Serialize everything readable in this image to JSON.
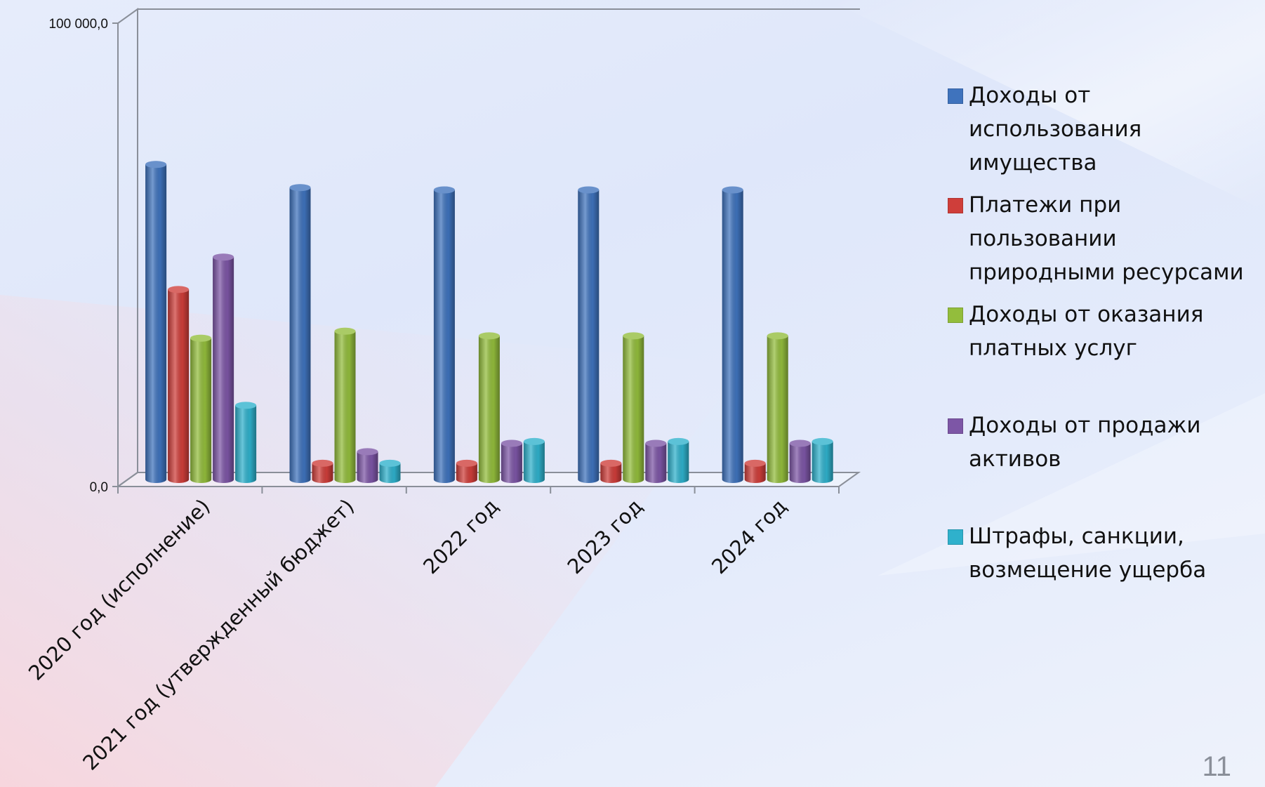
{
  "slide": {
    "page_number": "11"
  },
  "chart_data": {
    "type": "bar",
    "ylim": [
      0,
      100000
    ],
    "y_tick_labels": [
      "0,0",
      "100 000,0"
    ],
    "categories": [
      "2020 год (исполнение)",
      "2021 год (утвержденный бюджет)",
      "2022 год",
      "2023 год",
      "2024 год"
    ],
    "legend_position": "right",
    "series": [
      {
        "name": "Доходы от\nиспользования\nимущества",
        "color": "#3f73bd",
        "values": [
          68000,
          63000,
          62500,
          62500,
          62500
        ]
      },
      {
        "name": "Платежи при\nпользовании\nприродными ресурсами",
        "color": "#cf3e3a",
        "values": [
          41000,
          3500,
          3500,
          3500,
          3500
        ]
      },
      {
        "name": "Доходы от оказания\nплатных услуг",
        "color": "#93bd3c",
        "values": [
          30500,
          32000,
          31000,
          31000,
          31000
        ]
      },
      {
        "name": "Доходы от продажи\nактивов",
        "color": "#7d56a6",
        "values": [
          48000,
          6000,
          7800,
          7800,
          7800
        ]
      },
      {
        "name": "Штрафы, санкции,\nвозмещение ущерба",
        "color": "#2fb1cc",
        "values": [
          16000,
          3500,
          8200,
          8200,
          8200
        ]
      }
    ]
  }
}
